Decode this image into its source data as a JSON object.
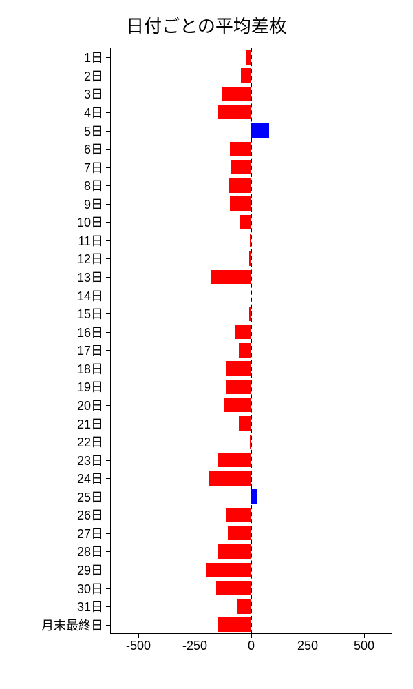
{
  "chart": {
    "type": "bar-horizontal",
    "title": "日付ごとの平均差枚",
    "title_fontsize": 26,
    "background_color": "#ffffff",
    "text_color": "#000000",
    "positive_color": "#0000ff",
    "negative_color": "#ff0000",
    "zero_line_color": "#000000",
    "xlim": [
      -625,
      625
    ],
    "xticks": [
      -500,
      -250,
      0,
      250,
      500
    ],
    "xtick_labels": [
      "-500",
      "-250",
      "0",
      "250",
      "500"
    ],
    "bar_height_ratio": 0.78,
    "label_fontsize": 18,
    "categories": [
      {
        "label": "1日",
        "value": -25
      },
      {
        "label": "2日",
        "value": -45
      },
      {
        "label": "3日",
        "value": -130
      },
      {
        "label": "4日",
        "value": -150
      },
      {
        "label": "5日",
        "value": 80
      },
      {
        "label": "6日",
        "value": -95
      },
      {
        "label": "7日",
        "value": -90
      },
      {
        "label": "8日",
        "value": -100
      },
      {
        "label": "9日",
        "value": -95
      },
      {
        "label": "10日",
        "value": -50
      },
      {
        "label": "11日",
        "value": -5
      },
      {
        "label": "12日",
        "value": -8
      },
      {
        "label": "13日",
        "value": -180
      },
      {
        "label": "14日",
        "value": 0
      },
      {
        "label": "15日",
        "value": -10
      },
      {
        "label": "16日",
        "value": -70
      },
      {
        "label": "17日",
        "value": -55
      },
      {
        "label": "18日",
        "value": -110
      },
      {
        "label": "19日",
        "value": -110
      },
      {
        "label": "20日",
        "value": -120
      },
      {
        "label": "21日",
        "value": -55
      },
      {
        "label": "22日",
        "value": -5
      },
      {
        "label": "23日",
        "value": -145
      },
      {
        "label": "24日",
        "value": -190
      },
      {
        "label": "25日",
        "value": 25
      },
      {
        "label": "26日",
        "value": -110
      },
      {
        "label": "27日",
        "value": -105
      },
      {
        "label": "28日",
        "value": -150
      },
      {
        "label": "29日",
        "value": -200
      },
      {
        "label": "30日",
        "value": -155
      },
      {
        "label": "31日",
        "value": -60
      },
      {
        "label": "月末最終日",
        "value": -145
      }
    ]
  }
}
